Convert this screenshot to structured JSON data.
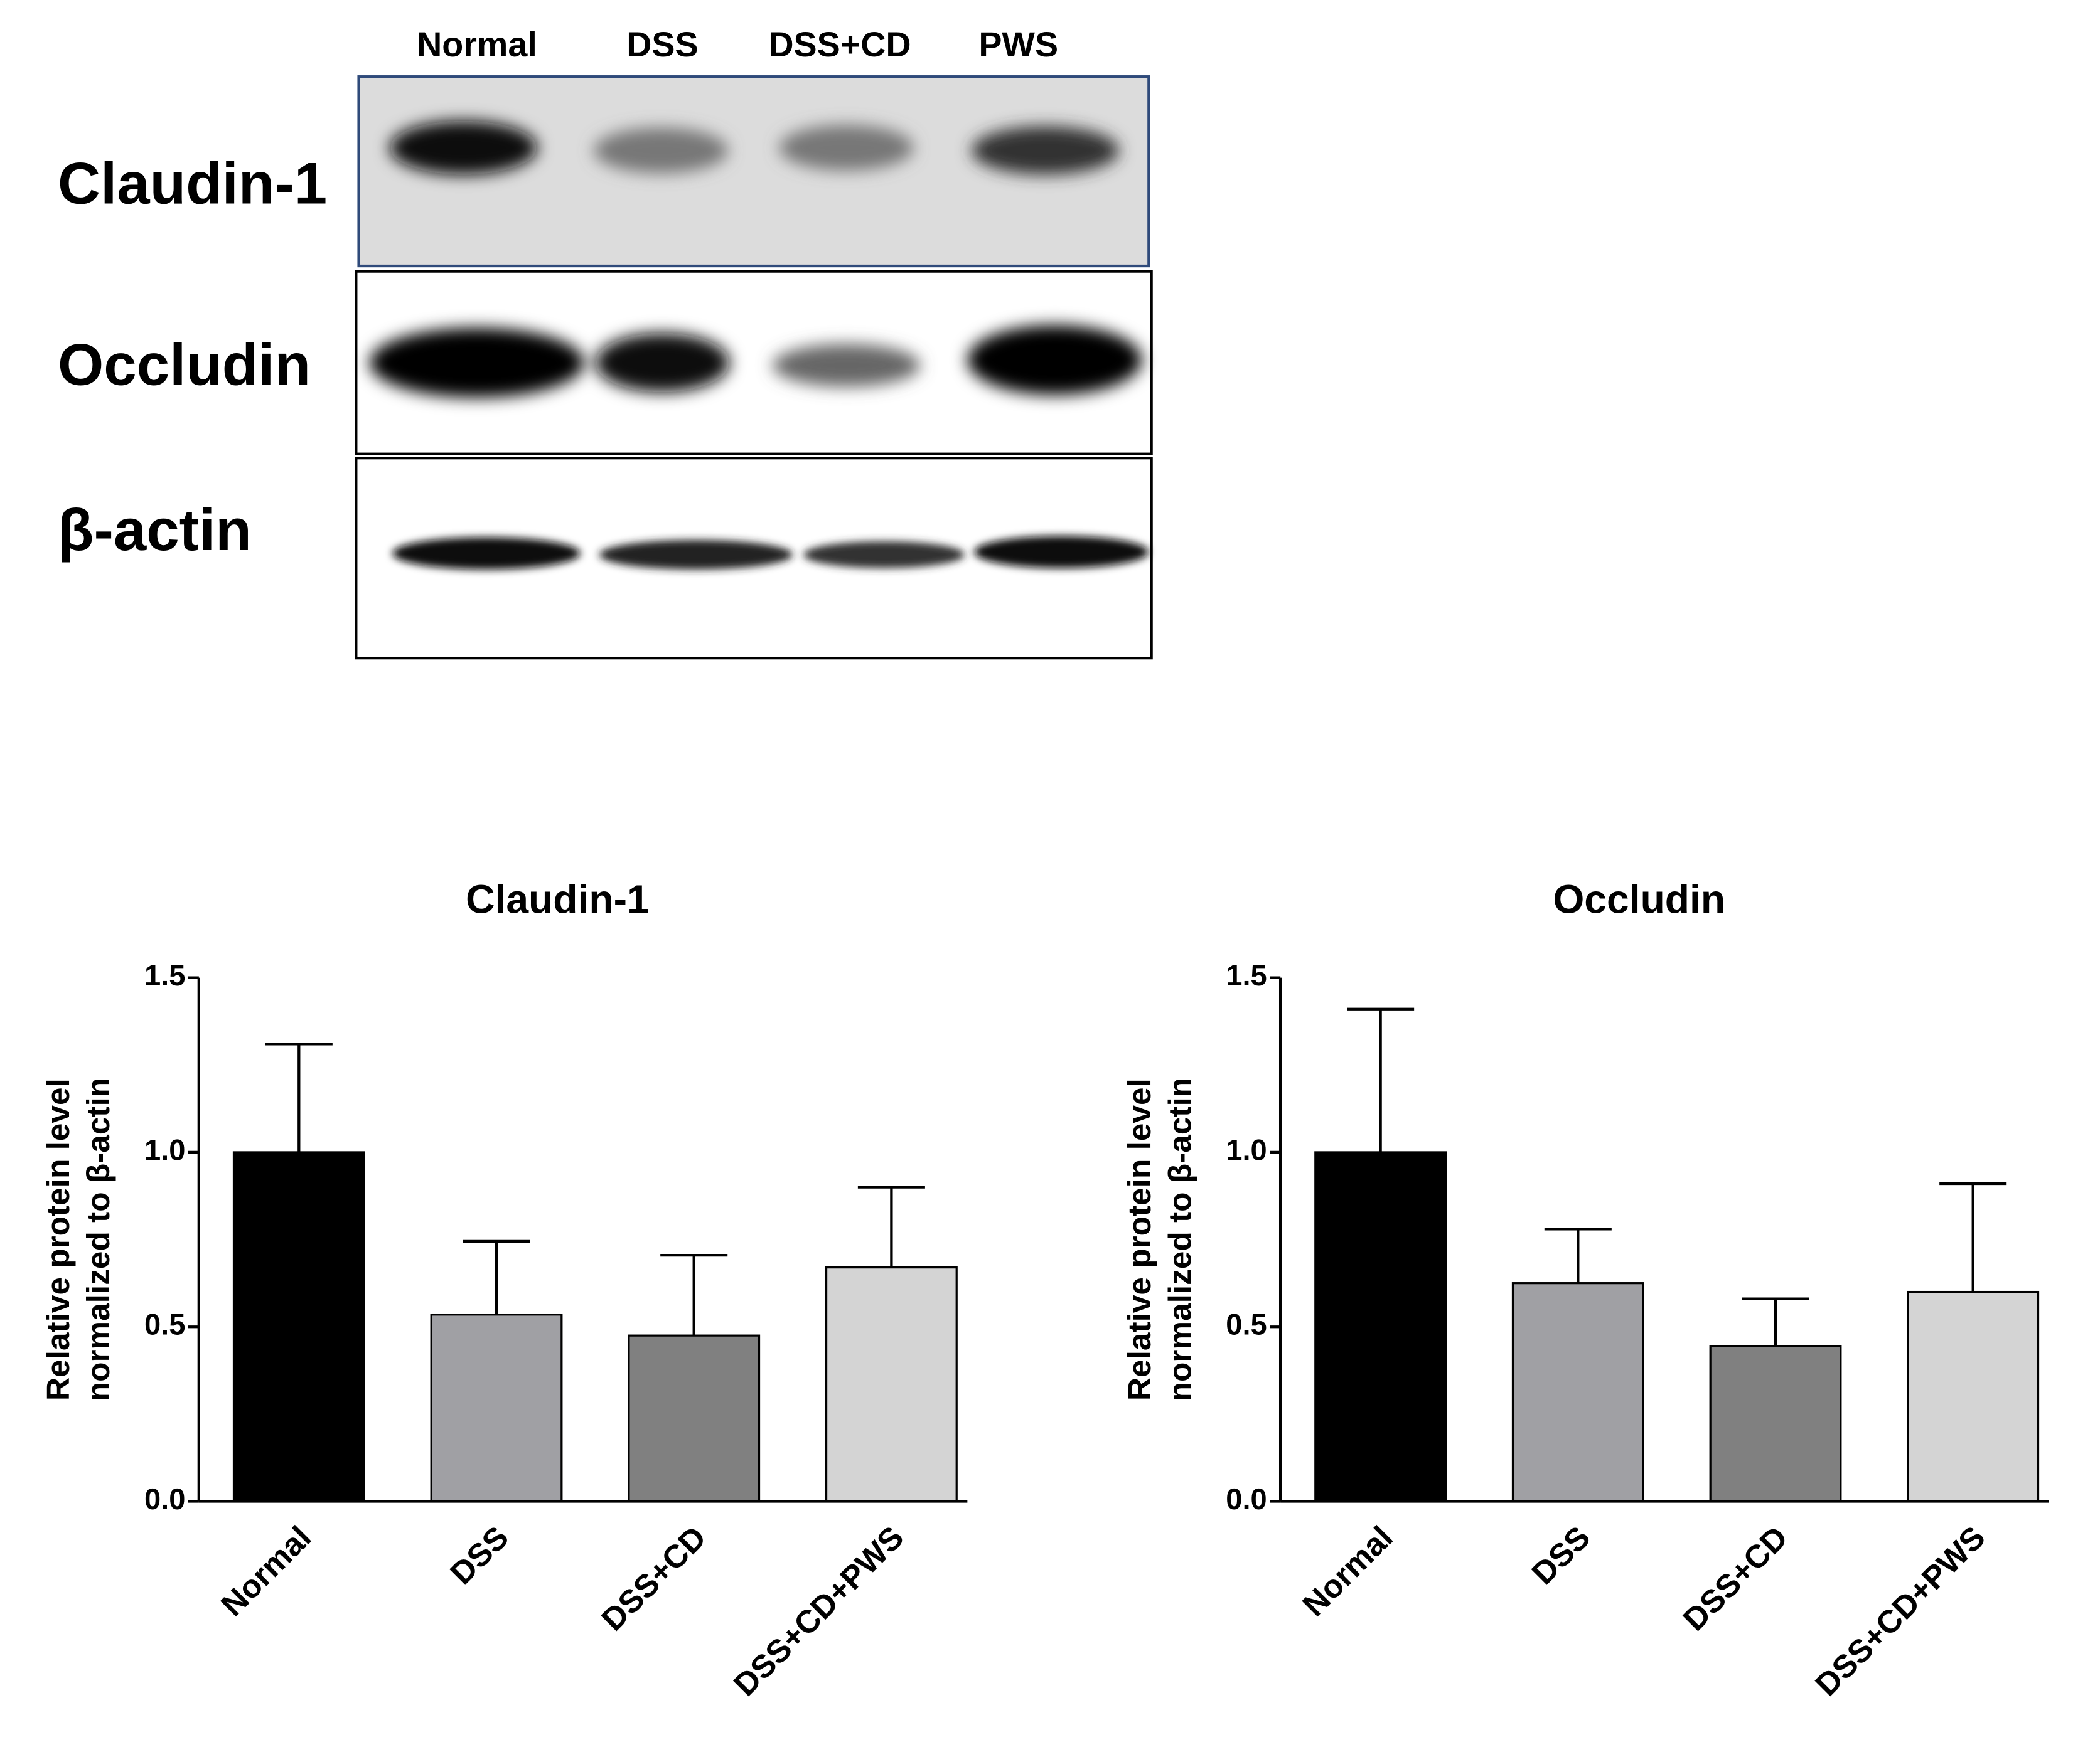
{
  "blot": {
    "lanes": [
      "Normal",
      "DSS",
      "DSS+CD",
      "PWS"
    ],
    "rows": [
      "Claudin-1",
      "Occludin",
      "β-actin"
    ]
  },
  "chart_data": [
    {
      "type": "bar",
      "title": "Claudin-1",
      "ylabel": [
        "Relative protein level",
        "normalized to β-actin"
      ],
      "categories": [
        "Normal",
        "DSS",
        "DSS+CD",
        "DSS+CD+PWS"
      ],
      "values": [
        1.0,
        0.535,
        0.475,
        0.67
      ],
      "errors": [
        0.31,
        0.21,
        0.23,
        0.23
      ],
      "colors": [
        "#000000",
        "#a0a0a4",
        "#808080",
        "#d4d4d4"
      ],
      "ylim": [
        0,
        1.5
      ],
      "yticks": [
        {
          "value": 0,
          "label": "0.0"
        },
        0.5,
        {
          "value": 1,
          "label": "1.0"
        },
        1.5
      ]
    },
    {
      "type": "bar",
      "title": "Occludin",
      "ylabel": [
        "Relative protein level",
        "normalized to β-actin"
      ],
      "categories": [
        "Normal",
        "DSS",
        "DSS+CD",
        "DSS+CD+PWS"
      ],
      "values": [
        1.0,
        0.625,
        0.445,
        0.6
      ],
      "errors": [
        0.41,
        0.155,
        0.135,
        0.31
      ],
      "colors": [
        "#000000",
        "#a0a0a4",
        "#808080",
        "#d4d4d4"
      ],
      "ylim": [
        0,
        1.5
      ],
      "yticks": [
        {
          "value": 0,
          "label": "0.0"
        },
        0.5,
        {
          "value": 1,
          "label": "1.0"
        },
        1.5
      ]
    }
  ]
}
